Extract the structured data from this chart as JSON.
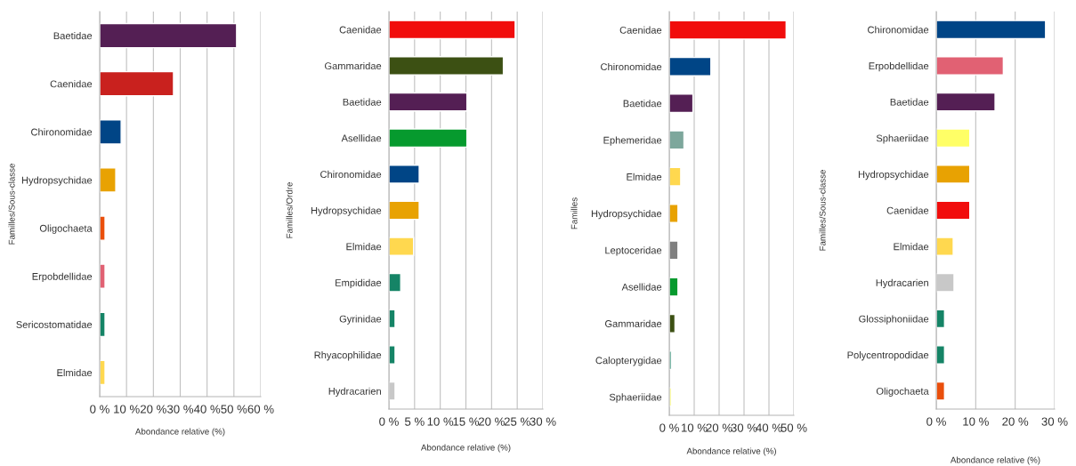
{
  "chart_data": [
    {
      "type": "bar",
      "orientation": "horizontal",
      "xlabel": "Abondance relative (%)",
      "ylabel": "Familles/Sous-classe",
      "grid": "x",
      "categories": [
        "Baetidae",
        "Caenidae",
        "Chironomidae",
        "Hydropsychidae",
        "Oligochaeta",
        "Erpobdellidae",
        "Sericostomatidae",
        "Elmidae"
      ],
      "values": [
        51,
        27.5,
        8,
        6,
        2,
        2,
        2,
        2
      ],
      "colors": [
        "#541f54",
        "#c9211e",
        "#004586",
        "#e8a202",
        "#ea4f0c",
        "#e16173",
        "#158466",
        "#ffd84f"
      ],
      "xlim": [
        0,
        60
      ],
      "xticks": [
        {
          "value": 0,
          "label": "0 %"
        },
        {
          "value": 10,
          "label": "10 %"
        },
        {
          "value": 20,
          "label": "20 %"
        },
        {
          "value": 30,
          "label": "30 %"
        },
        {
          "value": 40,
          "label": "40 %"
        },
        {
          "value": 50,
          "label": "50 %"
        },
        {
          "value": 60,
          "label": "60 %"
        }
      ]
    },
    {
      "type": "bar",
      "orientation": "horizontal",
      "xlabel": "Abondance relative (%)",
      "ylabel": "Familles/Ordre",
      "grid": "x",
      "categories": [
        "Caenidae",
        "Gammaridae",
        "Baetidae",
        "Asellidae",
        "Chironomidae",
        "Hydropsychidae",
        "Elmidae",
        "Empididae",
        "Gyrinidae",
        "Rhyacophilidae",
        "Hydracarien"
      ],
      "values": [
        24.6,
        22.3,
        15.2,
        15.2,
        5.9,
        5.9,
        4.8,
        2.3,
        1.2,
        1.2,
        1.2
      ],
      "colors": [
        "#f10d0c",
        "#3c5013",
        "#541f54",
        "#069a2e",
        "#004586",
        "#e8a202",
        "#ffd84f",
        "#158466",
        "#158466",
        "#158466",
        "#c8c8c8"
      ],
      "xlim": [
        0,
        30
      ],
      "xticks": [
        {
          "value": 0,
          "label": "0 %"
        },
        {
          "value": 5,
          "label": "5 %"
        },
        {
          "value": 10,
          "label": "10 %"
        },
        {
          "value": 15,
          "label": "15 %"
        },
        {
          "value": 20,
          "label": "20 %"
        },
        {
          "value": 25,
          "label": "25 %"
        },
        {
          "value": 30,
          "label": "30 %"
        }
      ]
    },
    {
      "type": "bar",
      "orientation": "horizontal",
      "xlabel": "Abondance relative (%)",
      "ylabel": "Familles",
      "grid": "x",
      "categories": [
        "Caenidae",
        "Chironomidae",
        "Baetidae",
        "Ephemeridae",
        "Elmidae",
        "Hydropsychidae",
        "Leptoceridae",
        "Asellidae",
        "Gammaridae",
        "Calopterygidae",
        "Sphaeriidae"
      ],
      "values": [
        46.9,
        16.7,
        9.5,
        5.9,
        4.6,
        3.5,
        3.5,
        3.5,
        2.3,
        0.8,
        0.8
      ],
      "colors": [
        "#f10d0c",
        "#004586",
        "#541f54",
        "#7da79c",
        "#ffd84f",
        "#e8a202",
        "#808080",
        "#069a2e",
        "#3c5013",
        "#158466",
        "#ffff66"
      ],
      "xlim": [
        0,
        50
      ],
      "xticks": [
        {
          "value": 0,
          "label": "0 %"
        },
        {
          "value": 10,
          "label": "10 %"
        },
        {
          "value": 20,
          "label": "20 %"
        },
        {
          "value": 30,
          "label": "30 %"
        },
        {
          "value": 40,
          "label": "40 %"
        },
        {
          "value": 50,
          "label": "50 %"
        }
      ]
    },
    {
      "type": "bar",
      "orientation": "horizontal",
      "xlabel": "Abondance relative (%)",
      "ylabel": "Familles/Sous-classe",
      "grid": "x",
      "categories": [
        "Chironomidae",
        "Erpobdellidae",
        "Baetidae",
        "Sphaeriidae",
        "Hydropsychidae",
        "Caenidae",
        "Elmidae",
        "Hydracarien",
        "Glossiphoniidae",
        "Polycentropodidae",
        "Oligochaeta"
      ],
      "values": [
        27.7,
        17,
        14.9,
        8.5,
        8.5,
        8.5,
        4.3,
        4.5,
        2.1,
        2.1,
        2.1
      ],
      "colors": [
        "#004586",
        "#e16173",
        "#541f54",
        "#ffff66",
        "#e8a202",
        "#f10d0c",
        "#ffd84f",
        "#c8c8c8",
        "#158466",
        "#158466",
        "#ea4f0c"
      ],
      "xlim": [
        0,
        30
      ],
      "xticks": [
        {
          "value": 0,
          "label": "0 %"
        },
        {
          "value": 10,
          "label": "10 %"
        },
        {
          "value": 20,
          "label": "20 %"
        },
        {
          "value": 30,
          "label": "30 %"
        }
      ]
    }
  ]
}
